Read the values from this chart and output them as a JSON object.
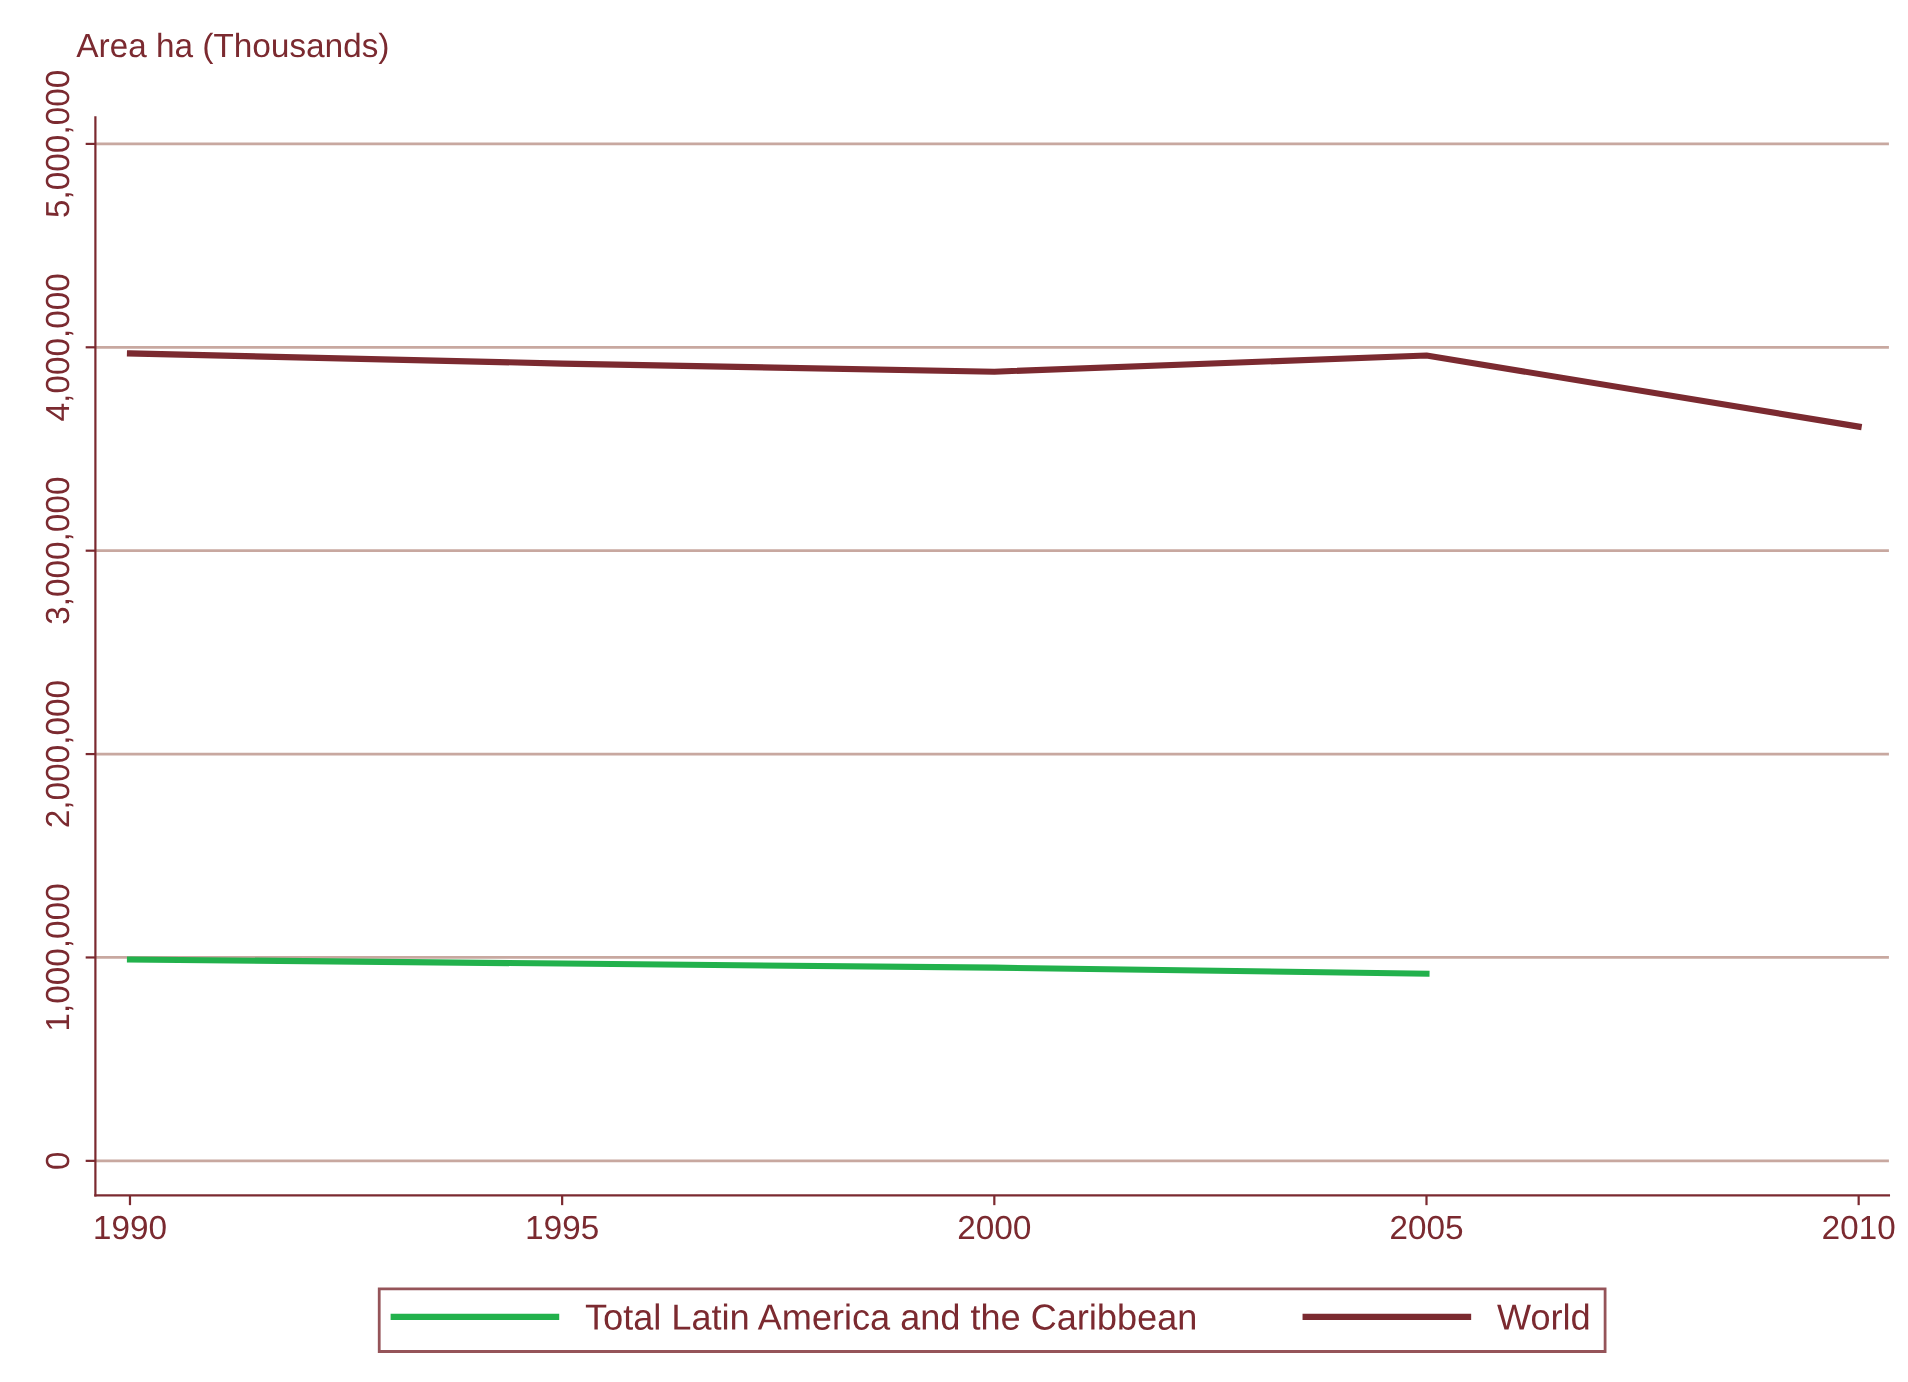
{
  "chart_data": {
    "type": "line",
    "ylabel": "Area ha (Thousands)",
    "x": [
      1990,
      1995,
      2000,
      2005,
      2010
    ],
    "series": [
      {
        "name": "Total Latin America and the Caribbean",
        "color": "#22b14c",
        "values": [
          990000,
          970000,
          950000,
          920000,
          null
        ]
      },
      {
        "name": "World",
        "color": "#7b2a30",
        "values": [
          3970000,
          3920000,
          3880000,
          3960000,
          3610000
        ]
      }
    ],
    "xlim": [
      1989.6,
      2010.35
    ],
    "ylim": [
      -170000,
      5130000
    ],
    "xticks": [
      1990,
      1995,
      2000,
      2005,
      2010
    ],
    "yticks": [
      {
        "value": 0,
        "label": "0"
      },
      {
        "value": 1000000,
        "label": "1,000,000"
      },
      {
        "value": 2000000,
        "label": "2,000,000"
      },
      {
        "value": 3000000,
        "label": "3,000,000"
      },
      {
        "value": 4000000,
        "label": "4,000,000"
      },
      {
        "value": 5000000,
        "label": "5,000,000"
      }
    ],
    "grid": "y",
    "legend": "bottom",
    "marker": "none",
    "line_style": "solid"
  }
}
